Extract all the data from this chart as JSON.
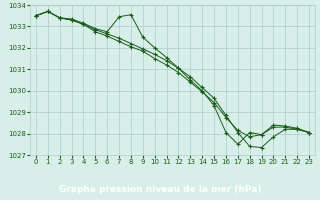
{
  "xlabel": "Graphe pression niveau de la mer (hPa)",
  "hours": [
    0,
    1,
    2,
    3,
    4,
    5,
    6,
    7,
    8,
    9,
    10,
    11,
    12,
    13,
    14,
    15,
    16,
    17,
    18,
    19,
    20,
    21,
    22,
    23
  ],
  "series": [
    [
      1033.5,
      1033.7,
      1033.4,
      1033.35,
      1033.15,
      1032.9,
      1032.75,
      1033.45,
      1033.55,
      1032.5,
      1032.0,
      1031.55,
      1031.05,
      1030.5,
      1030.0,
      1029.3,
      1028.05,
      1027.5,
      1028.05,
      1027.95,
      1028.4,
      1028.35,
      1028.25,
      1028.05
    ],
    [
      1033.5,
      1033.7,
      1033.4,
      1033.3,
      1033.1,
      1032.85,
      1032.65,
      1032.45,
      1032.2,
      1031.95,
      1031.7,
      1031.4,
      1031.05,
      1030.65,
      1030.15,
      1029.65,
      1028.85,
      1028.05,
      1027.4,
      1027.35,
      1027.85,
      1028.2,
      1028.2,
      1028.05
    ],
    [
      1033.5,
      1033.7,
      1033.4,
      1033.3,
      1033.1,
      1032.75,
      1032.55,
      1032.3,
      1032.05,
      1031.85,
      1031.5,
      1031.2,
      1030.85,
      1030.4,
      1029.95,
      1029.45,
      1028.75,
      1028.15,
      1027.85,
      1027.95,
      1028.3,
      1028.3,
      1028.2,
      1028.05
    ]
  ],
  "line_color": "#1a5c1a",
  "marker_color": "#1a5c1a",
  "bg_color": "#d8eee8",
  "grid_color": "#aacccc",
  "text_color": "#1a5c1a",
  "xlabel_bg": "#2a6b2a",
  "xlabel_text_color": "#ffffff",
  "ylim": [
    1027.0,
    1034.0
  ],
  "yticks": [
    1027,
    1028,
    1029,
    1030,
    1031,
    1032,
    1033,
    1034
  ],
  "xticks": [
    0,
    1,
    2,
    3,
    4,
    5,
    6,
    7,
    8,
    9,
    10,
    11,
    12,
    13,
    14,
    15,
    16,
    17,
    18,
    19,
    20,
    21,
    22,
    23
  ],
  "figsize": [
    3.2,
    2.0
  ],
  "dpi": 100
}
